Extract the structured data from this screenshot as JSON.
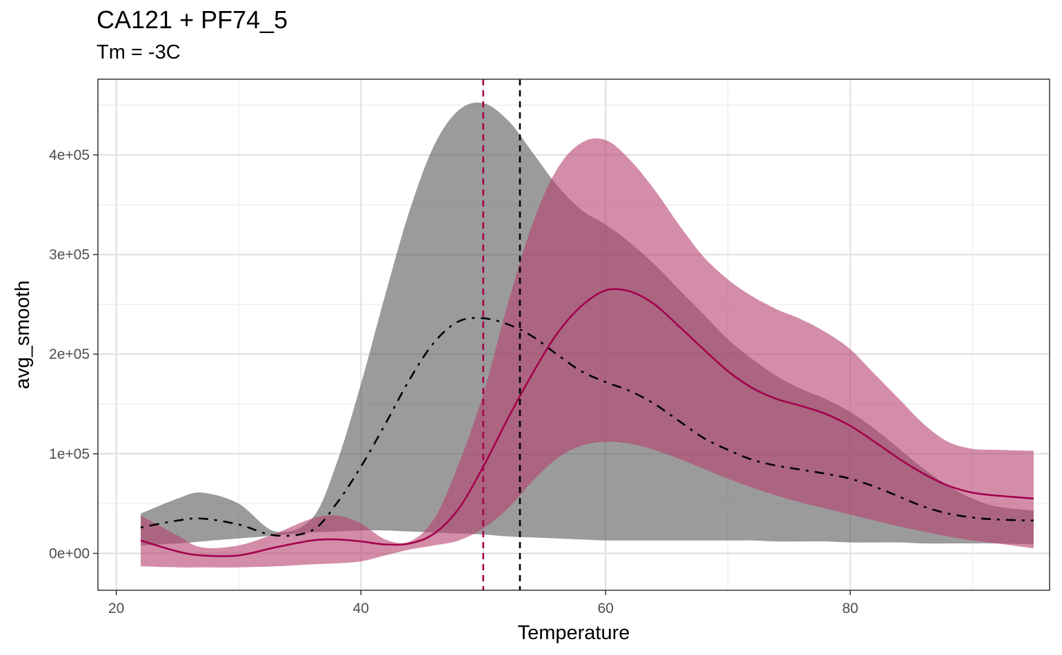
{
  "chart_data": {
    "type": "line",
    "title": "CA121 + PF74_5",
    "subtitle": "Tm = -3C",
    "xlabel": "Temperature",
    "ylabel": "avg_smooth",
    "xlim": [
      18.5,
      96.3
    ],
    "ylim": [
      -37000,
      476000
    ],
    "x_ticks": [
      20,
      40,
      60,
      80
    ],
    "x_tick_labels": [
      "20",
      "40",
      "60",
      "80"
    ],
    "y_ticks": [
      0,
      100000,
      200000,
      300000,
      400000
    ],
    "y_tick_labels": [
      "0e+00",
      "1e+05",
      "2e+05",
      "3e+05",
      "4e+05"
    ],
    "grid": true,
    "series": [
      {
        "color": "#000000",
        "line_style": "dashdot",
        "ribbon_color": "#595959",
        "x": [
          22,
          25,
          27,
          30,
          33,
          36,
          38,
          40,
          42,
          44,
          46,
          48,
          50,
          52,
          54,
          56,
          58,
          60,
          62,
          64,
          66,
          68,
          70,
          72,
          74,
          76,
          78,
          80,
          82,
          84,
          86,
          88,
          90,
          92,
          95
        ],
        "y": [
          26000,
          33000,
          35000,
          29000,
          18000,
          23000,
          50000,
          87000,
          130000,
          175000,
          212000,
          233000,
          236000,
          230000,
          218000,
          200000,
          183000,
          172000,
          163000,
          150000,
          133000,
          116000,
          104000,
          94000,
          88000,
          84000,
          80000,
          75000,
          67000,
          57000,
          47000,
          40000,
          36000,
          34000,
          33000
        ],
        "lower": [
          8000,
          10000,
          12000,
          15000,
          18000,
          21000,
          22000,
          23000,
          23000,
          22000,
          21000,
          20000,
          19000,
          17000,
          16000,
          15000,
          14000,
          13000,
          13000,
          13000,
          13000,
          13000,
          13000,
          13000,
          12000,
          12000,
          12000,
          11000,
          11000,
          11000,
          10000,
          10000,
          10000,
          10000,
          9000
        ],
        "upper": [
          40000,
          55000,
          61000,
          50000,
          22000,
          35000,
          90000,
          170000,
          260000,
          345000,
          410000,
          445000,
          452000,
          435000,
          403000,
          370000,
          345000,
          330000,
          312000,
          290000,
          265000,
          240000,
          215000,
          195000,
          178000,
          165000,
          155000,
          142000,
          125000,
          105000,
          85000,
          68000,
          55000,
          47000,
          43000
        ]
      },
      {
        "color": "#A3004C",
        "line_style": "solid",
        "ribbon_color": "#B5416F",
        "x": [
          22,
          25,
          27,
          30,
          33,
          36,
          38,
          40,
          42,
          44,
          46,
          48,
          50,
          52,
          54,
          56,
          58,
          60,
          62,
          64,
          66,
          68,
          70,
          72,
          74,
          76,
          78,
          80,
          82,
          84,
          86,
          88,
          90,
          92,
          95
        ],
        "y": [
          13000,
          2000,
          -2000,
          -2000,
          6000,
          13000,
          14000,
          12000,
          9000,
          10000,
          20000,
          45000,
          87000,
          135000,
          180000,
          220000,
          248000,
          264000,
          263000,
          250000,
          228000,
          205000,
          183000,
          166000,
          155000,
          148000,
          140000,
          128000,
          112000,
          95000,
          80000,
          68000,
          61000,
          58000,
          55000
        ],
        "lower": [
          -13000,
          -14000,
          -14000,
          -14000,
          -13000,
          -11000,
          -10000,
          -8000,
          -2000,
          4000,
          8000,
          13000,
          25000,
          45000,
          72000,
          95000,
          108000,
          112000,
          110000,
          104000,
          95000,
          85000,
          75000,
          66000,
          58000,
          51000,
          45000,
          39000,
          33000,
          27000,
          22000,
          17000,
          13000,
          10000,
          5000
        ],
        "upper": [
          38000,
          18000,
          6000,
          8000,
          20000,
          35000,
          38000,
          30000,
          14000,
          12000,
          35000,
          90000,
          160000,
          250000,
          330000,
          385000,
          412000,
          415000,
          395000,
          365000,
          330000,
          298000,
          275000,
          258000,
          245000,
          235000,
          222000,
          205000,
          180000,
          155000,
          130000,
          112000,
          105000,
          104000,
          103000
        ]
      }
    ],
    "vlines": [
      {
        "x": 50.0,
        "color": "#A3004C",
        "line_style": "dashed"
      },
      {
        "x": 53.0,
        "color": "#000000",
        "line_style": "dashed"
      }
    ]
  }
}
